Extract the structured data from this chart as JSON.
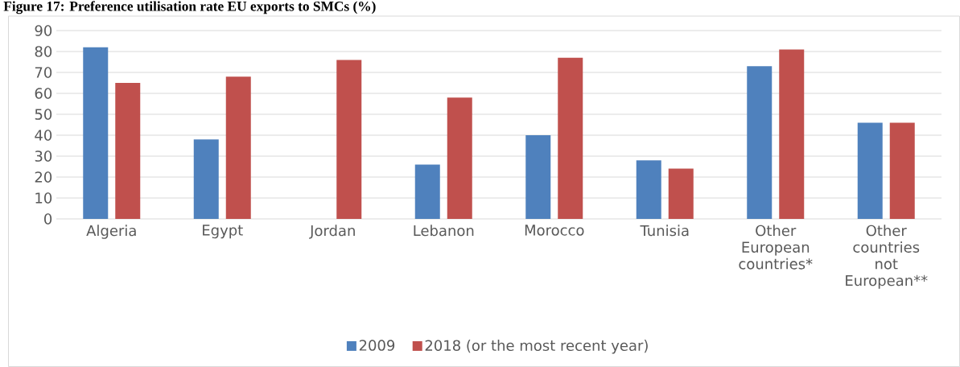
{
  "chart_data": {
    "type": "bar",
    "title": "Figure 17: Preference utilisation rate EU exports to SMCs (%)",
    "categories": [
      "Algeria",
      "Egypt",
      "Jordan",
      "Lebanon",
      "Morocco",
      "Tunisia",
      "Other European countries*",
      "Other countries not European**"
    ],
    "series": [
      {
        "name": "2009",
        "color": "#4f81bd",
        "values": [
          82,
          38,
          null,
          26,
          40,
          28,
          73,
          46
        ]
      },
      {
        "name": "2018 (or the most recent year)",
        "color": "#c0504d",
        "values": [
          65,
          68,
          76,
          58,
          77,
          24,
          81,
          46
        ]
      }
    ],
    "ylim": [
      0,
      90
    ],
    "yticks": [
      0,
      10,
      20,
      30,
      40,
      50,
      60,
      70,
      80,
      90
    ],
    "grid": "y",
    "legend": "bottom"
  }
}
